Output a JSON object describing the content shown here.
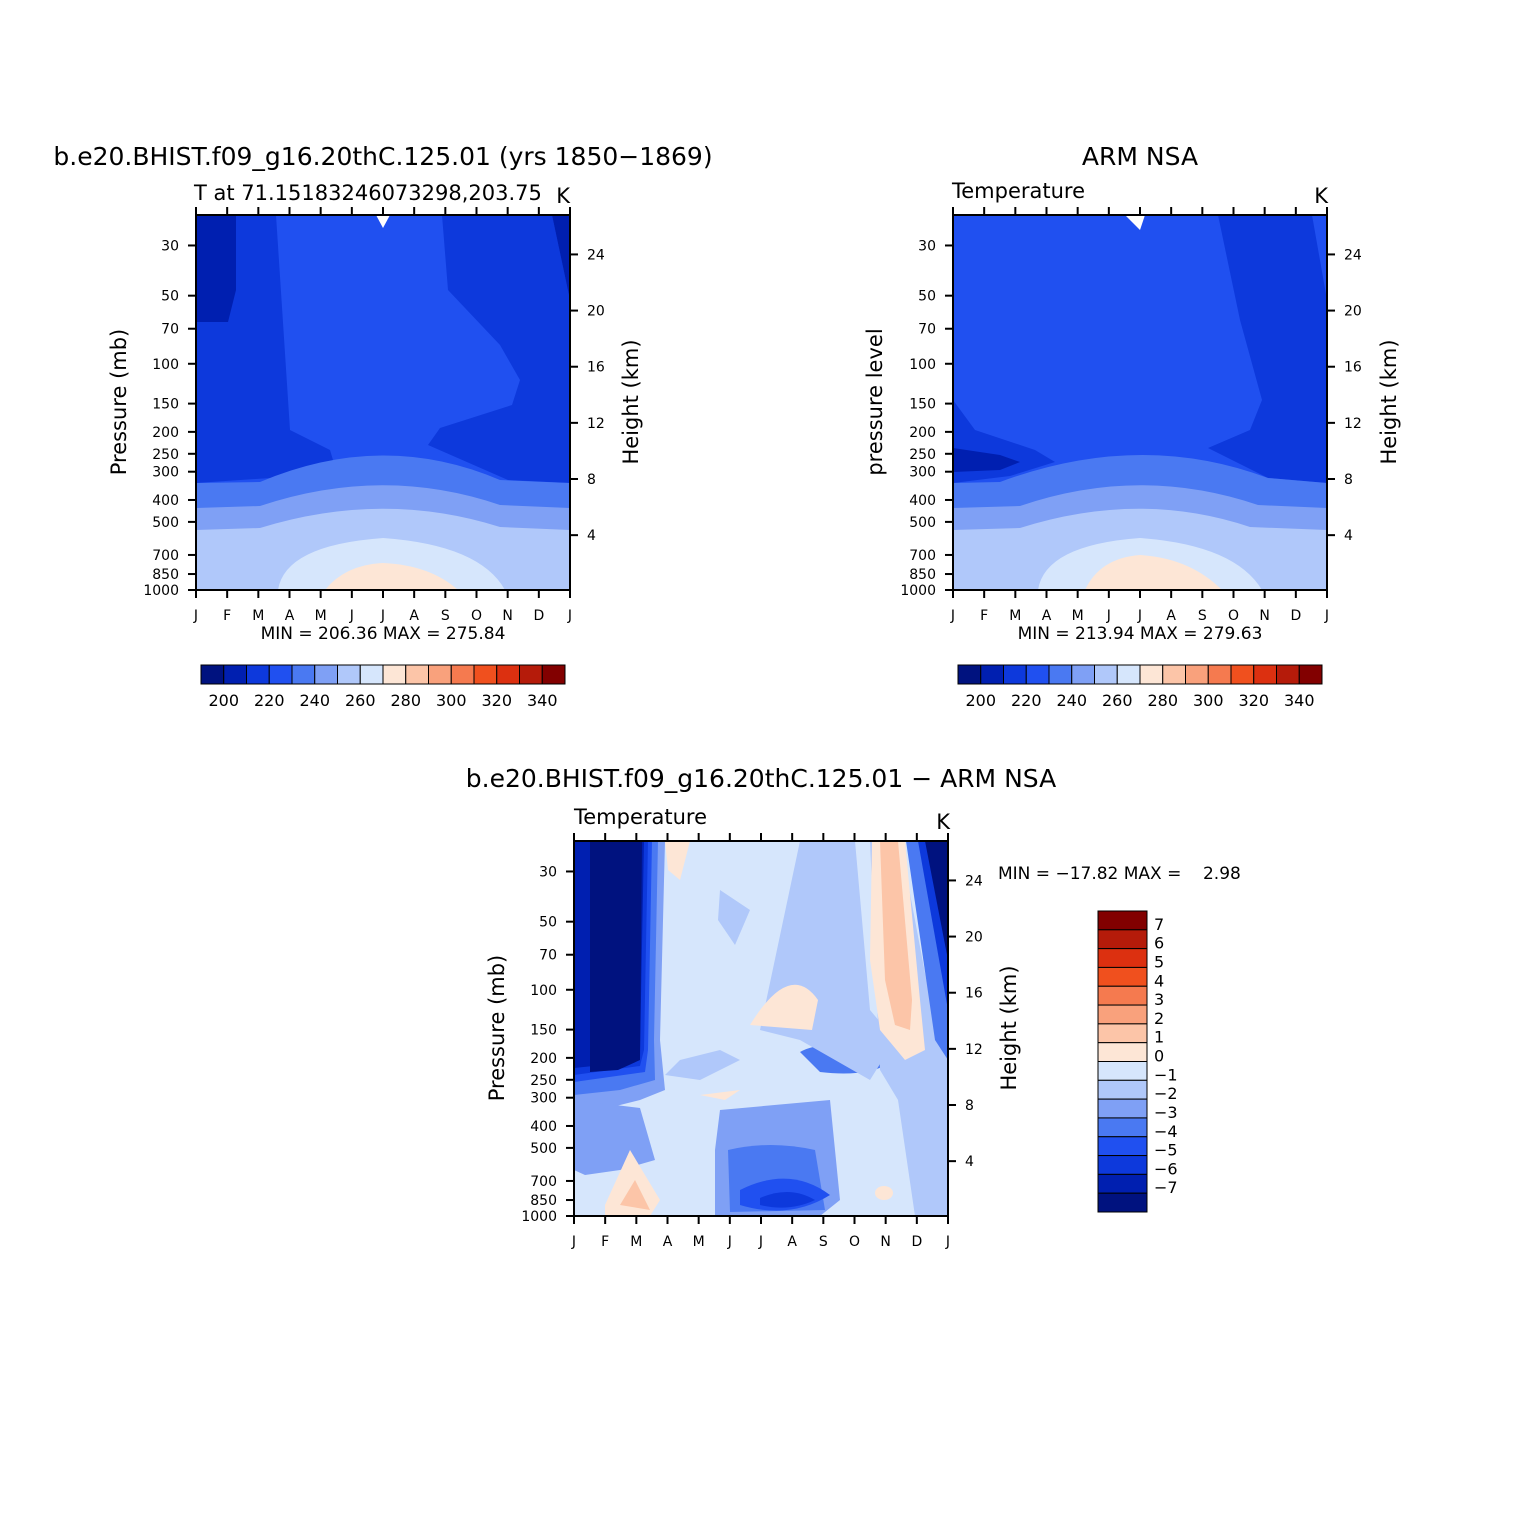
{
  "figure": {
    "panels": [
      {
        "id": "model",
        "title": "b.e20.BHIST.f09_g16.20thC.125.01 (yrs 1850−1869)",
        "left_string": "T at 71.15183246073298,203.75",
        "right_string": "K",
        "ylabel": "Pressure (mb)",
        "ylabel_right": "Height (km)",
        "minmax": "MIN = 206.36 MAX = 275.84"
      },
      {
        "id": "obs",
        "title": "ARM NSA",
        "left_string": "Temperature",
        "right_string": "K",
        "ylabel": "pressure level",
        "ylabel_right": "Height (km)",
        "minmax": "MIN = 213.94 MAX = 279.63"
      },
      {
        "id": "diff",
        "title": "b.e20.BHIST.f09_g16.20thC.125.01 − ARM NSA",
        "left_string": "Temperature",
        "right_string": "K",
        "ylabel": "Pressure (mb)",
        "ylabel_right": "Height (km)",
        "minmax": "MIN = −17.82 MAX =    2.98"
      }
    ]
  },
  "chart_data": [
    {
      "type": "heatmap",
      "title": "b.e20.BHIST.f09_g16.20thC.125.01 (yrs 1850−1869)",
      "xlabel": "",
      "ylabel": "Pressure (mb)",
      "ylabel_right": "Height (km)",
      "x_categories": [
        "J",
        "F",
        "M",
        "A",
        "M",
        "J",
        "J",
        "A",
        "S",
        "O",
        "N",
        "D",
        "J"
      ],
      "y_pressure_ticks": [
        30,
        50,
        70,
        100,
        150,
        200,
        250,
        300,
        400,
        500,
        700,
        850,
        1000
      ],
      "y_height_ticks": [
        4,
        8,
        12,
        16,
        20,
        24
      ],
      "y_log_scale": true,
      "colorbar_labels": [
        200,
        220,
        240,
        260,
        280,
        300,
        320,
        340
      ],
      "colorbar_colors": [
        "#00127f",
        "#001fb0",
        "#0d39dc",
        "#2050f0",
        "#4a79f2",
        "#7fa0f5",
        "#b0c8fa",
        "#d6e6fc",
        "#fde6d6",
        "#fcc5a8",
        "#f9a17c",
        "#f57a4f",
        "#f0501e",
        "#dc3010",
        "#b51b0a",
        "#820000"
      ],
      "min": 206.36,
      "max": 275.84,
      "units": "K"
    },
    {
      "type": "heatmap",
      "title": "ARM NSA",
      "xlabel": "",
      "ylabel": "pressure level",
      "ylabel_right": "Height (km)",
      "x_categories": [
        "J",
        "F",
        "M",
        "A",
        "M",
        "J",
        "J",
        "A",
        "S",
        "O",
        "N",
        "D",
        "J"
      ],
      "y_pressure_ticks": [
        30,
        50,
        70,
        100,
        150,
        200,
        250,
        300,
        400,
        500,
        700,
        850,
        1000
      ],
      "y_height_ticks": [
        4,
        8,
        12,
        16,
        20,
        24
      ],
      "y_log_scale": true,
      "colorbar_labels": [
        200,
        220,
        240,
        260,
        280,
        300,
        320,
        340
      ],
      "colorbar_colors": [
        "#00127f",
        "#001fb0",
        "#0d39dc",
        "#2050f0",
        "#4a79f2",
        "#7fa0f5",
        "#b0c8fa",
        "#d6e6fc",
        "#fde6d6",
        "#fcc5a8",
        "#f9a17c",
        "#f57a4f",
        "#f0501e",
        "#dc3010",
        "#b51b0a",
        "#820000"
      ],
      "min": 213.94,
      "max": 279.63,
      "units": "K"
    },
    {
      "type": "heatmap",
      "title": "b.e20.BHIST.f09_g16.20thC.125.01 − ARM NSA",
      "xlabel": "",
      "ylabel": "Pressure (mb)",
      "ylabel_right": "Height (km)",
      "x_categories": [
        "J",
        "F",
        "M",
        "A",
        "M",
        "J",
        "J",
        "A",
        "S",
        "O",
        "N",
        "D",
        "J"
      ],
      "y_pressure_ticks": [
        30,
        50,
        70,
        100,
        150,
        200,
        250,
        300,
        400,
        500,
        700,
        850,
        1000
      ],
      "y_height_ticks": [
        4,
        8,
        12,
        16,
        20,
        24
      ],
      "y_log_scale": true,
      "colorbar_labels": [
        7,
        6,
        5,
        4,
        3,
        2,
        1,
        0,
        -1,
        -2,
        -3,
        -4,
        -5,
        -6,
        -7
      ],
      "colorbar_label_text": [
        "7",
        "6",
        "5",
        "4",
        "3",
        "2",
        "1",
        "0",
        "−1",
        "−2",
        "−3",
        "−4",
        "−5",
        "−6",
        "−7"
      ],
      "colorbar_colors": [
        "#820000",
        "#b51b0a",
        "#dc3010",
        "#f0501e",
        "#f57a4f",
        "#f9a17c",
        "#fcc5a8",
        "#fde6d6",
        "#d6e6fc",
        "#b0c8fa",
        "#7fa0f5",
        "#4a79f2",
        "#2050f0",
        "#0d39dc",
        "#001fb0",
        "#00127f"
      ],
      "min": -17.82,
      "max": 2.98,
      "units": "K"
    }
  ]
}
